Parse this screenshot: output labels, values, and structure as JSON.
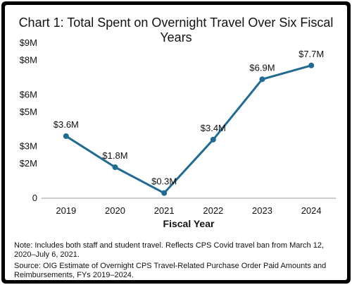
{
  "chart_data": {
    "type": "line",
    "title": "Chart 1: Total Spent on Overnight Travel Over Six Fiscal Years",
    "xlabel": "Fiscal Year",
    "ylabel": "",
    "categories": [
      "2019",
      "2020",
      "2021",
      "2022",
      "2023",
      "2024"
    ],
    "series": [
      {
        "values": [
          3.6,
          1.8,
          0.3,
          3.4,
          6.9,
          7.7
        ],
        "labels": [
          "$3.6M",
          "$1.8M",
          "$0.3M",
          "$3.4M",
          "$6.9M",
          "$7.7M"
        ],
        "color": "#1f6b93"
      }
    ],
    "ylim": [
      0,
      9
    ],
    "yticks": [
      {
        "value": 0,
        "label": "0"
      },
      {
        "value": 2,
        "label": "$2M"
      },
      {
        "value": 3,
        "label": "$3M"
      },
      {
        "value": 5,
        "label": "$5M"
      },
      {
        "value": 6,
        "label": "$6M"
      },
      {
        "value": 8,
        "label": "$8M"
      },
      {
        "value": 9,
        "label": "$9M"
      }
    ],
    "grid": false
  },
  "notes": {
    "note": "Note: Includes both staff and student travel. Reflects CPS Covid travel ban from March 12, 2020–July 6, 2021.",
    "source": "Source: OIG Estimate of Overnight CPS Travel-Related Purchase Order Paid Amounts and Reimbursements, FYs 2019–2024."
  },
  "colors": {
    "frame": "#000000",
    "background": "#ffffff",
    "line": "#1f6b93",
    "axis": "#9a9a9a"
  }
}
